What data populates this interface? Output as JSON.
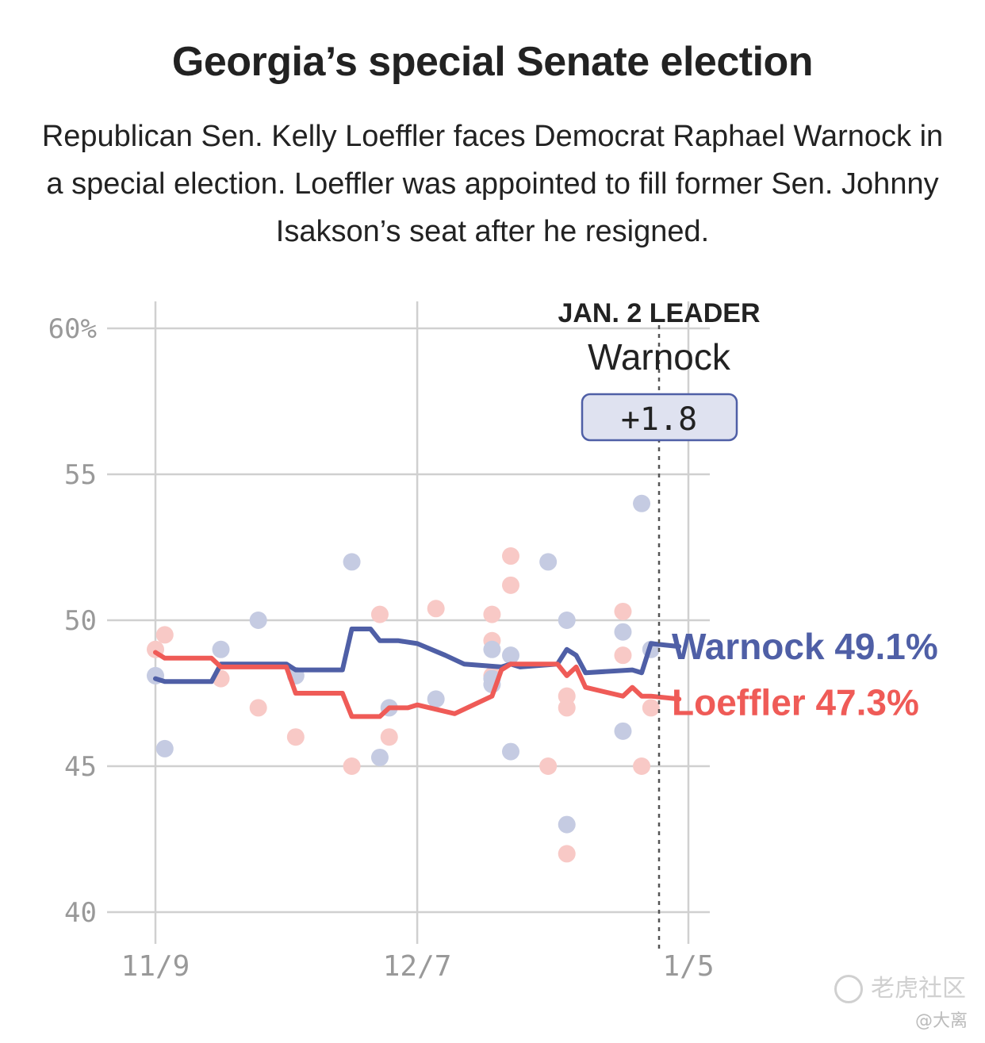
{
  "title": "Georgia’s special Senate election",
  "subtitle": "Republican Sen. Kelly Loeffler faces Democrat Raphael Warnock in a special election. Loeffler was appointed to fill former Sen. Johnny Isakson’s seat after he resigned.",
  "leader": {
    "heading": "JAN. 2 LEADER",
    "name": "Warnock",
    "margin": "+1.8"
  },
  "watermark": "老虎社区",
  "author": "@大离",
  "colors": {
    "warnock": "#4f5fa6",
    "loeffler": "#ef5b57",
    "warnock_dot": "#c5cbe2",
    "loeffler_dot": "#f8c9c6",
    "grid": "#d0d0d0",
    "leader_box_fill": "#dfe2f0"
  },
  "chart_data": {
    "type": "line",
    "x_ticks": [
      "11/9",
      "12/7",
      "1/5"
    ],
    "y_ticks": [
      "60%",
      "55",
      "50",
      "45",
      "40"
    ],
    "ylim": [
      40,
      61
    ],
    "xlim": [
      "2020-11-09",
      "2021-01-05"
    ],
    "grid": true,
    "vertical_marker": "2021-01-02",
    "series": [
      {
        "name": "Warnock",
        "end_label": "Warnock 49.1%",
        "points": [
          [
            "2020-11-09",
            48.0
          ],
          [
            "2020-11-10",
            47.9
          ],
          [
            "2020-11-15",
            47.9
          ],
          [
            "2020-11-16",
            48.5
          ],
          [
            "2020-11-23",
            48.5
          ],
          [
            "2020-11-24",
            48.3
          ],
          [
            "2020-11-29",
            48.3
          ],
          [
            "2020-11-30",
            49.7
          ],
          [
            "2020-12-02",
            49.7
          ],
          [
            "2020-12-03",
            49.3
          ],
          [
            "2020-12-05",
            49.3
          ],
          [
            "2020-12-07",
            49.2
          ],
          [
            "2020-12-10",
            48.8
          ],
          [
            "2020-12-12",
            48.5
          ],
          [
            "2020-12-16",
            48.4
          ],
          [
            "2020-12-17",
            48.5
          ],
          [
            "2020-12-18",
            48.4
          ],
          [
            "2020-12-22",
            48.5
          ],
          [
            "2020-12-23",
            49.0
          ],
          [
            "2020-12-24",
            48.8
          ],
          [
            "2020-12-25",
            48.2
          ],
          [
            "2020-12-30",
            48.3
          ],
          [
            "2020-12-31",
            48.2
          ],
          [
            "2021-01-01",
            49.2
          ],
          [
            "2021-01-04",
            49.1
          ]
        ]
      },
      {
        "name": "Loeffler",
        "end_label": "Loeffler 47.3%",
        "points": [
          [
            "2020-11-09",
            48.9
          ],
          [
            "2020-11-10",
            48.7
          ],
          [
            "2020-11-15",
            48.7
          ],
          [
            "2020-11-16",
            48.4
          ],
          [
            "2020-11-23",
            48.4
          ],
          [
            "2020-11-24",
            47.5
          ],
          [
            "2020-11-29",
            47.5
          ],
          [
            "2020-11-30",
            46.7
          ],
          [
            "2020-12-03",
            46.7
          ],
          [
            "2020-12-04",
            47.0
          ],
          [
            "2020-12-06",
            47.0
          ],
          [
            "2020-12-07",
            47.1
          ],
          [
            "2020-12-11",
            46.8
          ],
          [
            "2020-12-15",
            47.4
          ],
          [
            "2020-12-16",
            48.3
          ],
          [
            "2020-12-17",
            48.5
          ],
          [
            "2020-12-22",
            48.5
          ],
          [
            "2020-12-23",
            48.1
          ],
          [
            "2020-12-24",
            48.4
          ],
          [
            "2020-12-25",
            47.7
          ],
          [
            "2020-12-29",
            47.4
          ],
          [
            "2020-12-30",
            47.7
          ],
          [
            "2020-12-31",
            47.4
          ],
          [
            "2021-01-01",
            47.4
          ],
          [
            "2021-01-04",
            47.3
          ]
        ]
      }
    ],
    "polls": {
      "warnock": [
        [
          "2020-11-09",
          48.1
        ],
        [
          "2020-11-10",
          45.6
        ],
        [
          "2020-11-16",
          49.0
        ],
        [
          "2020-11-20",
          50.0
        ],
        [
          "2020-11-24",
          48.1
        ],
        [
          "2020-11-30",
          52.0
        ],
        [
          "2020-12-03",
          45.3
        ],
        [
          "2020-12-04",
          47.0
        ],
        [
          "2020-12-09",
          47.3
        ],
        [
          "2020-12-15",
          49.0
        ],
        [
          "2020-12-15",
          48.0
        ],
        [
          "2020-12-15",
          47.8
        ],
        [
          "2020-12-17",
          48.8
        ],
        [
          "2020-12-17",
          45.5
        ],
        [
          "2020-12-21",
          52.0
        ],
        [
          "2020-12-23",
          50.0
        ],
        [
          "2020-12-23",
          43.0
        ],
        [
          "2020-12-29",
          49.6
        ],
        [
          "2020-12-29",
          46.2
        ],
        [
          "2020-12-31",
          54.0
        ],
        [
          "2021-01-01",
          49.0
        ]
      ],
      "loeffler": [
        [
          "2020-11-09",
          49.0
        ],
        [
          "2020-11-10",
          49.5
        ],
        [
          "2020-11-16",
          48.0
        ],
        [
          "2020-11-20",
          47.0
        ],
        [
          "2020-11-24",
          46.0
        ],
        [
          "2020-11-30",
          45.0
        ],
        [
          "2020-12-03",
          50.2
        ],
        [
          "2020-12-04",
          46.0
        ],
        [
          "2020-12-09",
          50.4
        ],
        [
          "2020-12-15",
          50.2
        ],
        [
          "2020-12-15",
          49.3
        ],
        [
          "2020-12-15",
          48.1
        ],
        [
          "2020-12-17",
          52.2
        ],
        [
          "2020-12-17",
          51.2
        ],
        [
          "2020-12-21",
          45.0
        ],
        [
          "2020-12-23",
          47.4
        ],
        [
          "2020-12-23",
          47.0
        ],
        [
          "2020-12-23",
          42.0
        ],
        [
          "2020-12-29",
          50.3
        ],
        [
          "2020-12-29",
          48.8
        ],
        [
          "2020-12-31",
          45.0
        ],
        [
          "2021-01-01",
          47.0
        ]
      ]
    }
  }
}
